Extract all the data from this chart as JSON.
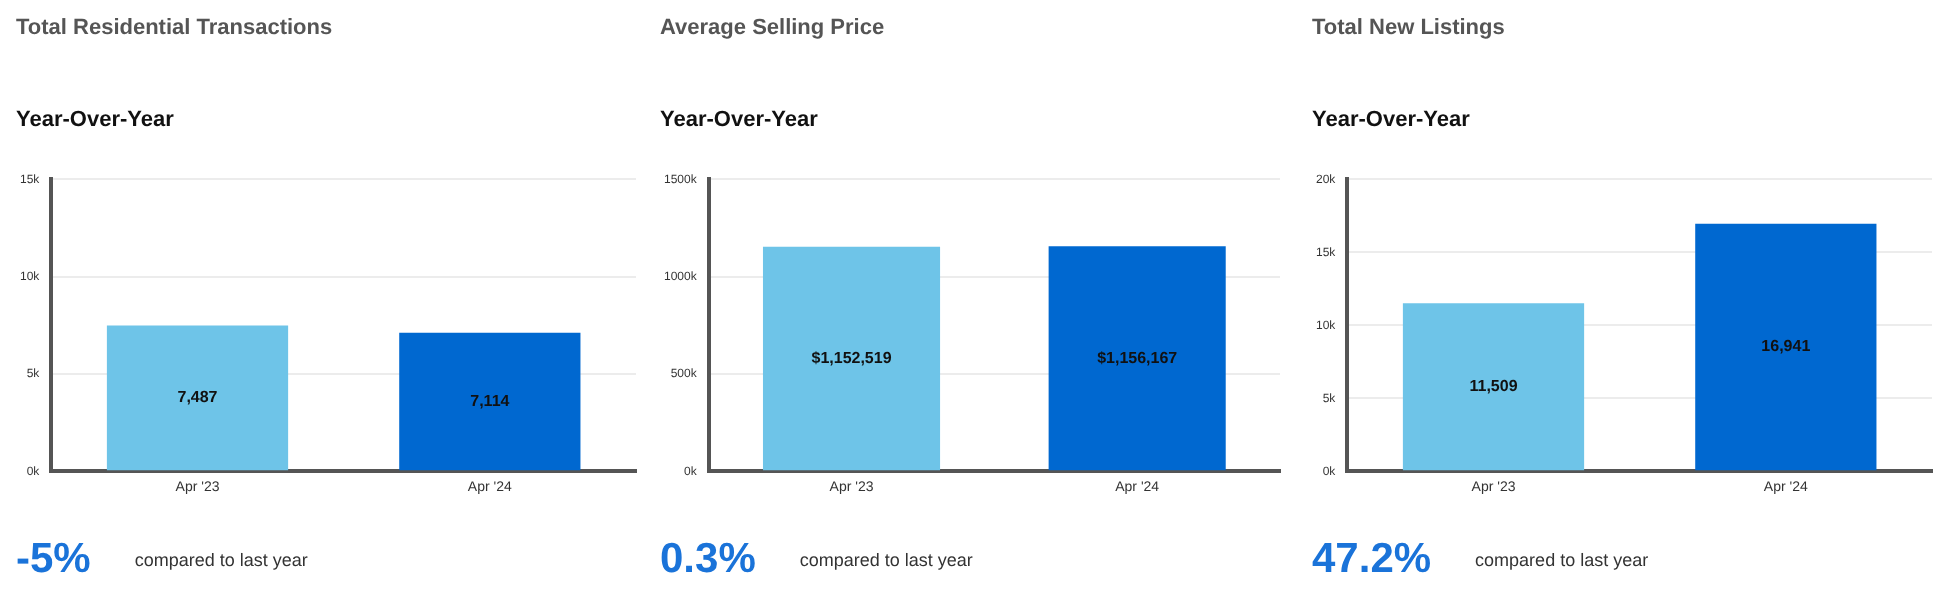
{
  "chart_data": [
    {
      "type": "bar",
      "title": "Total Residential Transactions",
      "subtitle": "Year-Over-Year",
      "categories": [
        "Apr '23",
        "Apr '24"
      ],
      "values": [
        7487,
        7114
      ],
      "colors": [
        "#6ec4e8",
        "#0068d0"
      ],
      "value_labels": [
        "7,487",
        "7,114"
      ],
      "ylim": [
        0,
        15000
      ],
      "yticks": [
        {
          "value": 0,
          "label": "0k"
        },
        {
          "value": 5000,
          "label": "5k"
        },
        {
          "value": 10000,
          "label": "10k"
        },
        {
          "value": 15000,
          "label": "15k"
        }
      ],
      "grid": "y",
      "annotations": [
        "-5%",
        "compared to last year"
      ]
    },
    {
      "type": "bar",
      "title": "Average Selling Price",
      "subtitle": "Year-Over-Year",
      "categories": [
        "Apr '23",
        "Apr '24"
      ],
      "values": [
        1152519,
        1156167
      ],
      "colors": [
        "#6ec4e8",
        "#0068d0"
      ],
      "value_labels": [
        "$1,152,519",
        "$1,156,167"
      ],
      "ylim": [
        0,
        1500000
      ],
      "yticks": [
        {
          "value": 0,
          "label": "0k"
        },
        {
          "value": 500000,
          "label": "500k"
        },
        {
          "value": 1000000,
          "label": "1000k"
        },
        {
          "value": 1500000,
          "label": "1500k"
        }
      ],
      "grid": "y",
      "annotations": [
        "0.3%",
        "compared to last year"
      ]
    },
    {
      "type": "bar",
      "title": "Total New Listings",
      "subtitle": "Year-Over-Year",
      "categories": [
        "Apr '23",
        "Apr '24"
      ],
      "values": [
        11509,
        16941
      ],
      "colors": [
        "#6ec4e8",
        "#0068d0"
      ],
      "value_labels": [
        "11,509",
        "16,941"
      ],
      "ylim": [
        0,
        20000
      ],
      "yticks": [
        {
          "value": 0,
          "label": "0k"
        },
        {
          "value": 5000,
          "label": "5k"
        },
        {
          "value": 10000,
          "label": "10k"
        },
        {
          "value": 15000,
          "label": "15k"
        },
        {
          "value": 20000,
          "label": "20k"
        }
      ],
      "grid": "y",
      "annotations": [
        "47.2%",
        "compared to last year"
      ]
    }
  ]
}
